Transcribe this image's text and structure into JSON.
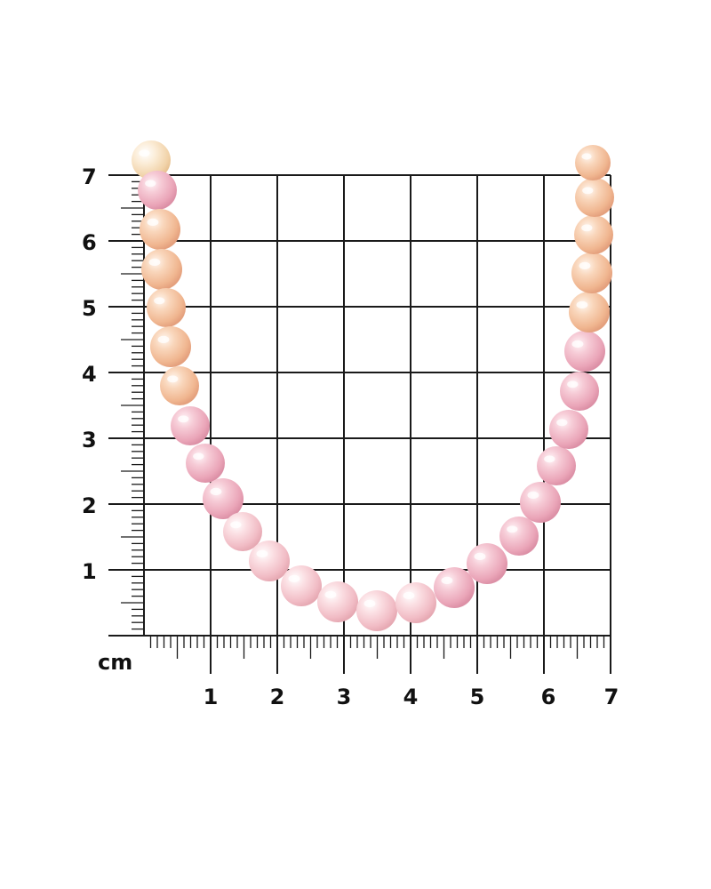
{
  "ruler": {
    "unit": "cm",
    "x_labels": [
      "1",
      "2",
      "3",
      "4",
      "5",
      "6",
      "7"
    ],
    "y_labels": [
      "1",
      "2",
      "3",
      "4",
      "5",
      "6",
      "7"
    ],
    "line_color": "#1a1a1a"
  },
  "necklace": {
    "pearl_colors": {
      "peach": "#f6c9a6",
      "pink": "#f3b9c6",
      "light_pink": "#f8d0d6",
      "cream": "#f7e0c2"
    }
  }
}
